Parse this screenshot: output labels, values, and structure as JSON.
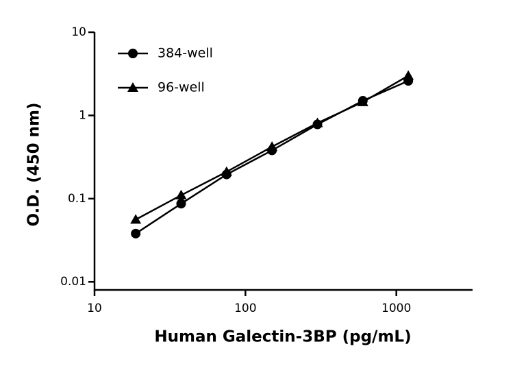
{
  "chart_data": {
    "type": "line",
    "x_label": "Human Galectin-3BP (pg/mL)",
    "y_label": "O.D. (450 nm)",
    "x": [
      18.75,
      37.5,
      75,
      150,
      300,
      600,
      1200
    ],
    "series": [
      {
        "name": "384-well",
        "color": "#000000",
        "marker": "circle",
        "values": [
          0.038,
          0.087,
          0.195,
          0.38,
          0.78,
          1.5,
          2.6
        ]
      },
      {
        "name": "96-well",
        "color": "#000000",
        "marker": "triangle",
        "values": [
          0.056,
          0.11,
          0.21,
          0.42,
          0.81,
          1.45,
          3.0
        ]
      }
    ],
    "xlim": [
      10,
      3200
    ],
    "ylim": [
      0.008,
      10
    ],
    "xticks": [
      10,
      100,
      1000
    ],
    "yticks": [
      0.01,
      0.1,
      1,
      10
    ],
    "xscale": "log",
    "yscale": "log",
    "grid": false,
    "legend": "top-left"
  }
}
